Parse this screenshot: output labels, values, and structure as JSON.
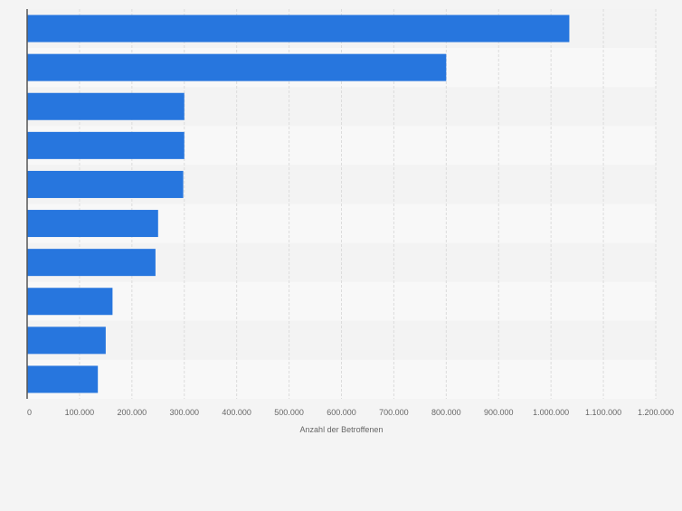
{
  "chart_data": {
    "type": "bar",
    "orientation": "horizontal",
    "title": "",
    "xlabel": "Anzahl der Betroffenen",
    "ylabel": "",
    "categories": [
      "",
      "",
      "",
      "",
      "",
      "",
      "",
      "",
      "",
      ""
    ],
    "values": [
      1035000,
      800000,
      300000,
      300000,
      298000,
      250000,
      245000,
      163000,
      150000,
      135000
    ],
    "xlim": [
      0,
      1200000
    ],
    "ticks": [
      0,
      100000,
      200000,
      300000,
      400000,
      500000,
      600000,
      700000,
      800000,
      900000,
      1000000,
      1100000,
      1200000
    ],
    "tick_labels": [
      "0",
      "100.000",
      "200.000",
      "300.000",
      "400.000",
      "500.000",
      "600.000",
      "700.000",
      "800.000",
      "900.000",
      "1.000.000",
      "1.100.000",
      "1.200.000"
    ],
    "grid": true,
    "legend": "none",
    "colors": {
      "bar": "#2776de",
      "band_dark": "#f3f3f3",
      "band_light": "#f8f8f8",
      "grid": "#dcdcdc",
      "axis_text": "#666666",
      "page_background": "#f4f4f4"
    }
  }
}
